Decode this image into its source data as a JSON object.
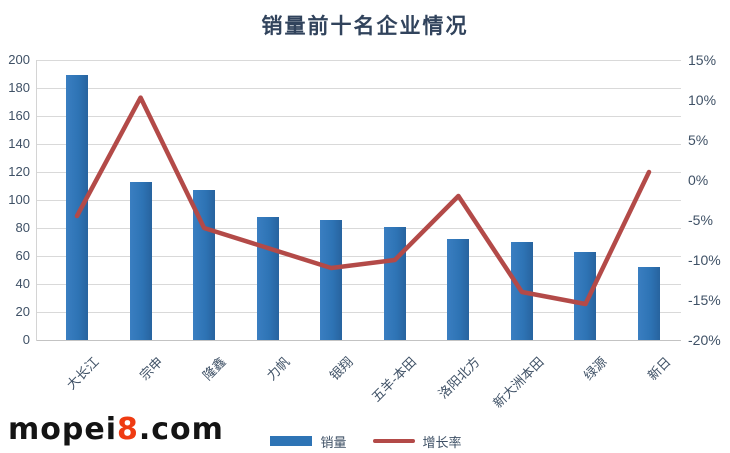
{
  "title": "销量前十名企业情况",
  "watermark": {
    "prefix": "mopei",
    "highlight": "8",
    "suffix": ".com"
  },
  "legend": {
    "items": [
      {
        "label": "销量",
        "marker": "bar-swatch"
      },
      {
        "label": "增长率",
        "marker": "line-swatch"
      }
    ]
  },
  "colors": {
    "bar": "#2e74b5",
    "line": "#b34a48",
    "title_text": "#31435c",
    "axis_text": "#3f5166",
    "grid": "#d9d9d9",
    "watermark_text": "#141414",
    "watermark_highlight": "#ef3b12",
    "background": "#ffffff"
  },
  "chart_data": {
    "type": "bar+line",
    "title": "销量前十名企业情况",
    "categories": [
      "大长江",
      "宗申",
      "隆鑫",
      "力帆",
      "银翔",
      "五羊-本田",
      "洛阳北方",
      "新大洲本田",
      "绿源",
      "新日"
    ],
    "series": [
      {
        "name": "销量",
        "type": "bar",
        "axis": "left",
        "values": [
          189,
          113,
          107,
          88,
          86,
          81,
          72,
          70,
          63,
          52
        ]
      },
      {
        "name": "增长率",
        "type": "line",
        "axis": "right",
        "values": [
          -4.5,
          10.3,
          -6,
          -8.5,
          -11,
          -10,
          -2,
          -14,
          -15.5,
          1
        ]
      }
    ],
    "left_axis": {
      "min": 0,
      "max": 200,
      "step": 20,
      "tick_labels": [
        "200",
        "180",
        "160",
        "140",
        "120",
        "100",
        "80",
        "60",
        "40",
        "20",
        "0"
      ]
    },
    "right_axis": {
      "min": -20,
      "max": 15,
      "step": 5,
      "tick_labels": [
        "15%",
        "10%",
        "5%",
        "0%",
        "-5%",
        "-10%",
        "-15%",
        "-20%"
      ]
    },
    "grid": true,
    "legend_position": "bottom"
  }
}
